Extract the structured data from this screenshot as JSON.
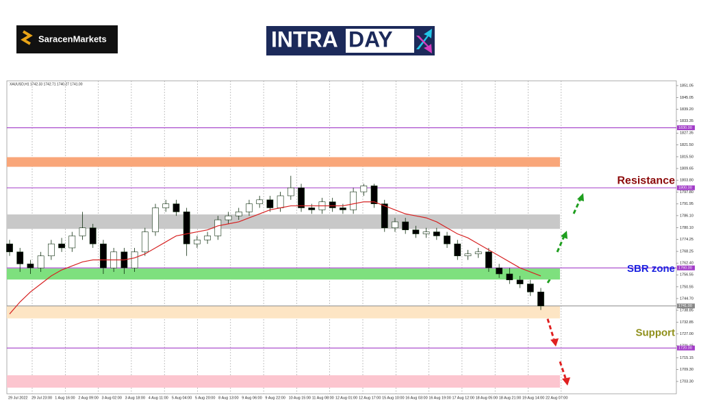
{
  "brand": "SaracenMarkets",
  "banner": [
    "INTRA",
    "DAY"
  ],
  "chart_data": {
    "type": "candlestick",
    "header": "XAUUSD,H1  1742.33 1742.71 1740.27 1741.00",
    "x_labels": [
      "29 Jul 2022",
      "29 Jul 23:00",
      "1 Aug 16:00",
      "2 Aug 09:00",
      "3 Aug 02:00",
      "3 Aug 18:00",
      "4 Aug 11:00",
      "5 Aug 04:00",
      "5 Aug 20:00",
      "8 Aug 13:00",
      "9 Aug 06:00",
      "9 Aug 22:00",
      "10 Aug 15:00",
      "11 Aug 08:00",
      "12 Aug 01:00",
      "12 Aug 17:00",
      "15 Aug 10:00",
      "16 Aug 03:00",
      "16 Aug 19:00",
      "17 Aug 12:00",
      "18 Aug 05:00",
      "18 Aug 21:00",
      "19 Aug 14:00",
      "22 Aug 07:00"
    ],
    "open": [
      1772,
      1768,
      1762,
      1760,
      1766,
      1772,
      1770,
      1776,
      1780,
      1772,
      1760,
      1768,
      1760,
      1768,
      1778,
      1790,
      1792,
      1788,
      1772,
      1774,
      1776,
      1784,
      1786,
      1788,
      1792,
      1794,
      1790,
      1796,
      1800,
      1790,
      1789,
      1793,
      1790,
      1789,
      1798,
      1801,
      1792,
      1780,
      1783,
      1779,
      1777,
      1778,
      1776,
      1772,
      1766,
      1767,
      1768,
      1760,
      1757,
      1754,
      1752,
      1748
    ],
    "high": [
      1774,
      1770,
      1764,
      1768,
      1774,
      1775,
      1778,
      1788,
      1782,
      1774,
      1770,
      1770,
      1770,
      1780,
      1792,
      1794,
      1794,
      1790,
      1776,
      1778,
      1786,
      1788,
      1790,
      1794,
      1796,
      1796,
      1798,
      1806,
      1802,
      1792,
      1795,
      1795,
      1792,
      1800,
      1802,
      1802,
      1794,
      1785,
      1785,
      1781,
      1780,
      1780,
      1778,
      1774,
      1769,
      1770,
      1770,
      1762,
      1760,
      1756,
      1754,
      1750
    ],
    "low": [
      1766,
      1758,
      1757,
      1758,
      1764,
      1768,
      1768,
      1774,
      1770,
      1757,
      1758,
      1757,
      1758,
      1766,
      1776,
      1788,
      1786,
      1766,
      1770,
      1772,
      1774,
      1782,
      1784,
      1786,
      1790,
      1788,
      1788,
      1794,
      1788,
      1787,
      1787,
      1788,
      1787,
      1787,
      1796,
      1790,
      1778,
      1778,
      1777,
      1775,
      1775,
      1774,
      1770,
      1764,
      1764,
      1765,
      1758,
      1755,
      1752,
      1750,
      1746,
      1739
    ],
    "close": [
      1768,
      1762,
      1760,
      1766,
      1772,
      1770,
      1776,
      1780,
      1772,
      1760,
      1768,
      1760,
      1768,
      1778,
      1790,
      1792,
      1788,
      1772,
      1774,
      1776,
      1784,
      1786,
      1788,
      1792,
      1794,
      1790,
      1796,
      1800,
      1790,
      1789,
      1793,
      1790,
      1789,
      1798,
      1801,
      1792,
      1780,
      1783,
      1779,
      1777,
      1778,
      1776,
      1772,
      1766,
      1767,
      1768,
      1760,
      1757,
      1754,
      1752,
      1748,
      1741
    ],
    "bull_color": "#ffffff",
    "bear_color": "#000000",
    "candle_edge": "#0a2a0a",
    "moving_average": {
      "color": "#d62020",
      "values": [
        1737,
        1743,
        1748,
        1752,
        1756,
        1759,
        1761,
        1763,
        1764,
        1764,
        1764,
        1764,
        1765,
        1767,
        1770,
        1773,
        1776,
        1777,
        1778,
        1779,
        1781,
        1782,
        1783,
        1785,
        1787,
        1789,
        1790,
        1791,
        1791,
        1791,
        1791,
        1791,
        1791,
        1792,
        1793,
        1793,
        1791,
        1789,
        1787,
        1786,
        1785,
        1783,
        1780,
        1777,
        1775,
        1772,
        1769,
        1766,
        1763,
        1760,
        1758,
        1756
      ]
    },
    "ylim": [
      1697.14,
      1853.44
    ],
    "yticks": [
      1851.05,
      1845.05,
      {
        "value": 1839.2,
        "label": "1839.20"
      },
      1833.35,
      1827.35,
      {
        "value": 1821.5,
        "label": "1821.50"
      },
      {
        "value": 1815.5,
        "label": "1815.50"
      },
      1809.65,
      {
        "value": 1803.8,
        "label": "1803.80"
      },
      {
        "value": 1797.8,
        "label": "1797.80"
      },
      1791.95,
      {
        "value": 1786.1,
        "label": "1786.10"
      },
      {
        "value": 1780.1,
        "label": "1780.10"
      },
      1774.25,
      1768.25,
      {
        "value": 1762.4,
        "label": "1762.40"
      },
      1756.55,
      1750.55,
      {
        "value": 1744.7,
        "label": "1744.70"
      },
      1738.85,
      1732.85,
      {
        "value": 1727,
        "label": "1727.00"
      },
      1721.15,
      1715.15,
      {
        "value": 1709.3,
        "label": "1709.30"
      },
      {
        "value": 1703.3,
        "label": "1703.30"
      }
    ],
    "zones": [
      {
        "from": 1815.3,
        "to": 1810.5,
        "color": "#f9a679"
      },
      {
        "from": 1786.7,
        "to": 1779.5,
        "color": "#c8c8c8"
      },
      {
        "from": 1759.7,
        "to": 1754.2,
        "color": "#7ee07e"
      },
      {
        "from": 1741,
        "to": 1734.8,
        "color": "#fde5c4"
      },
      {
        "from": 1706.4,
        "to": 1700.2,
        "color": "#fcc5cf"
      }
    ],
    "levels": [
      {
        "value": 1830,
        "label": "1830.00",
        "color": "#a23cc8"
      },
      {
        "value": 1800,
        "label": "1800.00",
        "color": "#a23cc8"
      },
      {
        "value": 1760,
        "label": "1760.00",
        "color": "#a23cc8"
      },
      {
        "value": 1741,
        "label": "1741.00",
        "color": "#888888"
      },
      {
        "value": 1720,
        "label": "1720.00",
        "color": "#a23cc8"
      }
    ],
    "annotations": [
      {
        "text": "Resistance",
        "color": "#8b0a0a",
        "at": 1800
      },
      {
        "text": "SBR zone",
        "color": "#1a22e0",
        "at": 1756
      },
      {
        "text": "Support",
        "color": "#8f8f1a",
        "at": 1724
      }
    ]
  }
}
